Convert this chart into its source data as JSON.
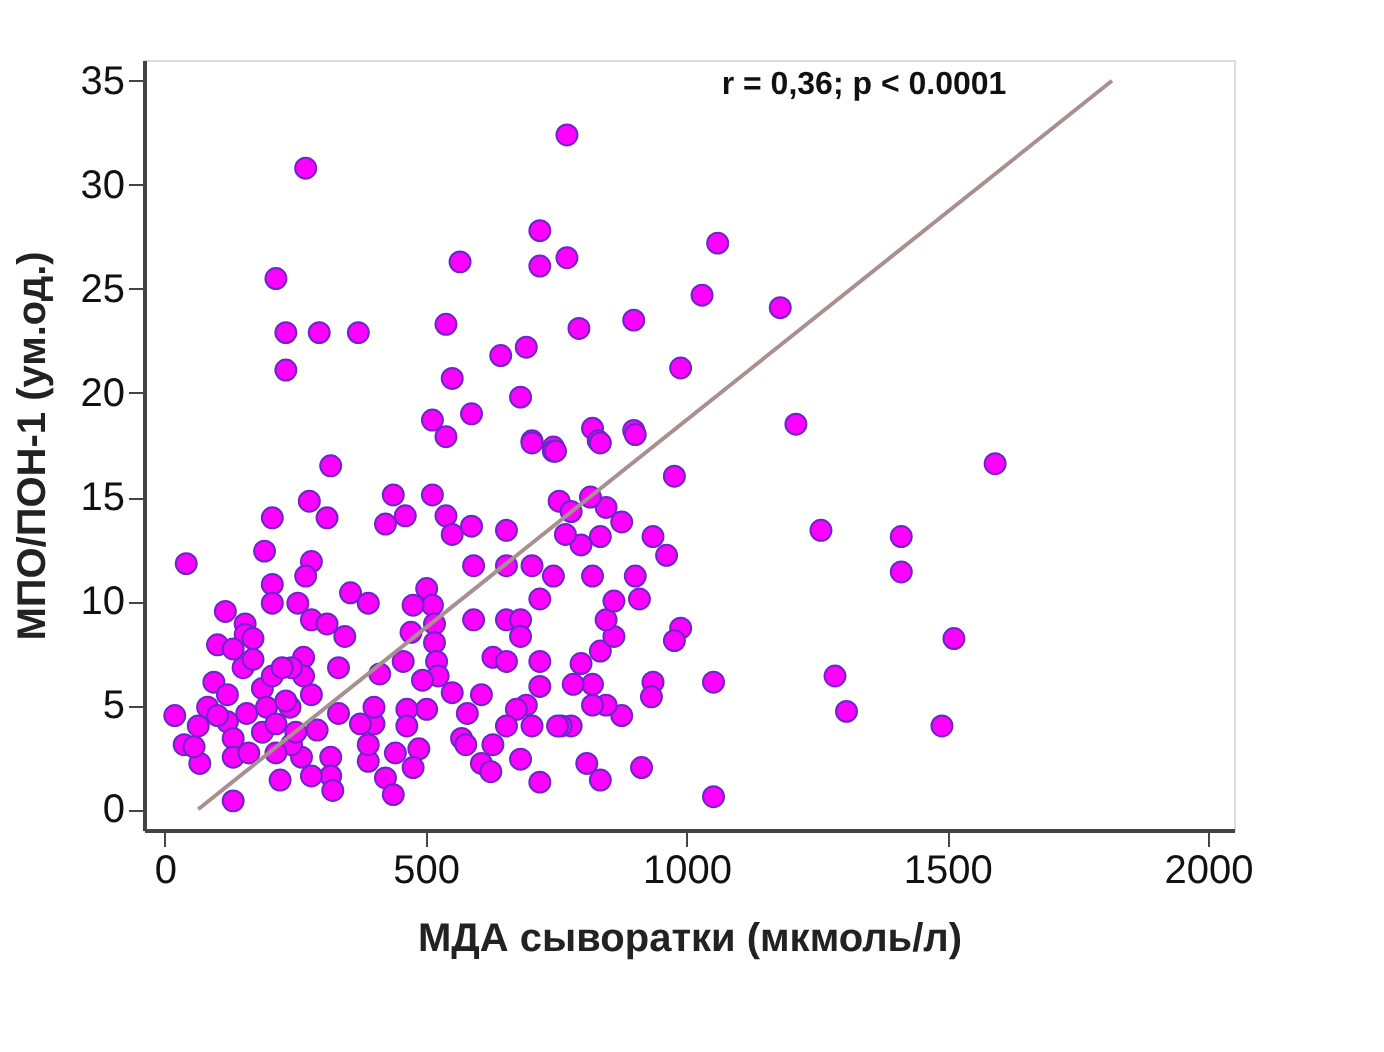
{
  "chart_data": {
    "type": "scatter",
    "xlabel": "МДА сыворатки (мкмоль/л)",
    "ylabel": "МПО/ПОН-1 (ум.од.)",
    "annotations": [
      "r = 0,36; p < 0.0001"
    ],
    "xlim": [
      -40,
      2050
    ],
    "ylim": [
      -1,
      36
    ],
    "xticks": [
      0,
      500,
      1000,
      1500,
      2000
    ],
    "yticks": [
      0,
      5,
      10,
      15,
      20,
      25,
      30,
      35
    ],
    "grid": false,
    "marker": "circle",
    "series": [
      {
        "color": "#ff00ff",
        "x": [
          270,
          771,
          213,
          566,
          719,
          719,
          771,
          1060,
          1030,
          232,
          296,
          371,
          232,
          539,
          794,
          899,
          644,
          693,
          551,
          989,
          682,
          513,
          539,
          588,
          704,
          745,
          820,
          831,
          899,
          1180,
          1210,
          977,
          1592,
          1258,
          1412,
          1412,
          1513,
          1285,
          1307,
          1490,
          1052,
          1052,
          989,
          977,
          936,
          933,
          914,
          835,
          809,
          876,
          846,
          820,
          820,
          783,
          779,
          760,
          798,
          835,
          861,
          846,
          861,
          910,
          902,
          820,
          745,
          936,
          962,
          876,
          846,
          835,
          798,
          768,
          756,
          816,
          779,
          745,
          835,
          902,
          318,
          41,
          206,
          277,
          311,
          438,
          513,
          461,
          423,
          539,
          551,
          588,
          655,
          704,
          749,
          191,
          281,
          270,
          206,
          206,
          116,
          154,
          154,
          101,
          255,
          281,
          311,
          345,
          356,
          390,
          502,
          513,
          476,
          472,
          517,
          517,
          521,
          457,
          412,
          333,
          266,
          592,
          592,
          655,
          704,
          719,
          655,
          682,
          682,
          629,
          655,
          719,
          719,
          693,
          674,
          655,
          704,
          753,
          629,
          682,
          719,
          607,
          625,
          524,
          494,
          551,
          580,
          607,
          569,
          577,
          502,
          464,
          464,
          487,
          476,
          442,
          423,
          438,
          390,
          390,
          401,
          375,
          401,
          333,
          318,
          318,
          322,
          281,
          262,
          243,
          221,
          131,
          281,
          292,
          240,
          266,
          243,
          19,
          37,
          67,
          64,
          82,
          94,
          120,
          120,
          131,
          131,
          150,
          157,
          161,
          169,
          187,
          187,
          195,
          206,
          213,
          213,
          225,
          232,
          251,
          131,
          169,
          101,
          56
        ],
        "values": [
          30.8,
          32.4,
          25.5,
          26.3,
          27.8,
          26.1,
          26.5,
          27.2,
          24.7,
          22.9,
          22.9,
          22.9,
          21.1,
          23.3,
          23.1,
          23.5,
          21.8,
          22.2,
          20.7,
          21.2,
          19.8,
          18.7,
          17.9,
          19.0,
          17.7,
          17.4,
          18.3,
          17.7,
          18.2,
          24.1,
          18.5,
          16.0,
          16.6,
          13.4,
          13.1,
          11.4,
          8.2,
          6.4,
          4.7,
          4.0,
          6.1,
          0.6,
          8.7,
          8.1,
          6.1,
          5.4,
          2.0,
          1.4,
          2.2,
          4.5,
          5.0,
          5.0,
          6.0,
          6.0,
          4.0,
          4.0,
          7.0,
          7.6,
          8.3,
          9.1,
          10.0,
          10.1,
          11.2,
          11.2,
          11.2,
          13.1,
          12.2,
          13.8,
          14.5,
          13.1,
          12.7,
          13.2,
          14.8,
          15.0,
          14.3,
          17.2,
          17.6,
          18.0,
          16.5,
          11.8,
          14.0,
          14.8,
          14.0,
          15.1,
          15.1,
          14.1,
          13.7,
          14.1,
          13.2,
          13.6,
          13.4,
          17.6,
          17.2,
          12.4,
          11.9,
          11.2,
          10.8,
          9.9,
          9.5,
          8.9,
          8.4,
          7.9,
          9.9,
          9.1,
          8.9,
          8.3,
          10.4,
          9.9,
          10.6,
          9.8,
          9.8,
          8.5,
          8.9,
          8.0,
          7.1,
          7.1,
          6.5,
          6.8,
          7.3,
          11.7,
          9.1,
          11.7,
          11.7,
          10.1,
          9.1,
          9.1,
          8.3,
          7.3,
          7.1,
          7.1,
          5.9,
          5.0,
          4.8,
          4.0,
          4.0,
          4.0,
          3.1,
          2.4,
          1.3,
          2.2,
          1.8,
          6.4,
          6.2,
          5.6,
          4.6,
          5.5,
          3.4,
          3.1,
          4.8,
          4.8,
          4.0,
          2.9,
          2.0,
          2.7,
          1.5,
          0.7,
          2.3,
          3.1,
          4.1,
          4.1,
          4.9,
          4.6,
          2.5,
          1.6,
          0.9,
          1.6,
          2.5,
          3.1,
          1.4,
          0.4,
          5.5,
          3.8,
          4.9,
          6.4,
          6.8,
          4.5,
          3.1,
          2.2,
          4.0,
          4.9,
          6.1,
          5.5,
          4.2,
          3.4,
          2.5,
          6.8,
          4.6,
          2.7,
          7.2,
          5.8,
          3.7,
          4.9,
          6.4,
          4.1,
          2.7,
          6.8,
          5.2,
          3.7,
          7.7,
          8.2,
          4.5,
          3.0
        ]
      },
      {
        "type": "line",
        "marker": "none",
        "line_style": "solid",
        "color": "#a89090",
        "x": [
          64,
          1816
        ],
        "values": [
          0,
          35
        ]
      }
    ]
  }
}
